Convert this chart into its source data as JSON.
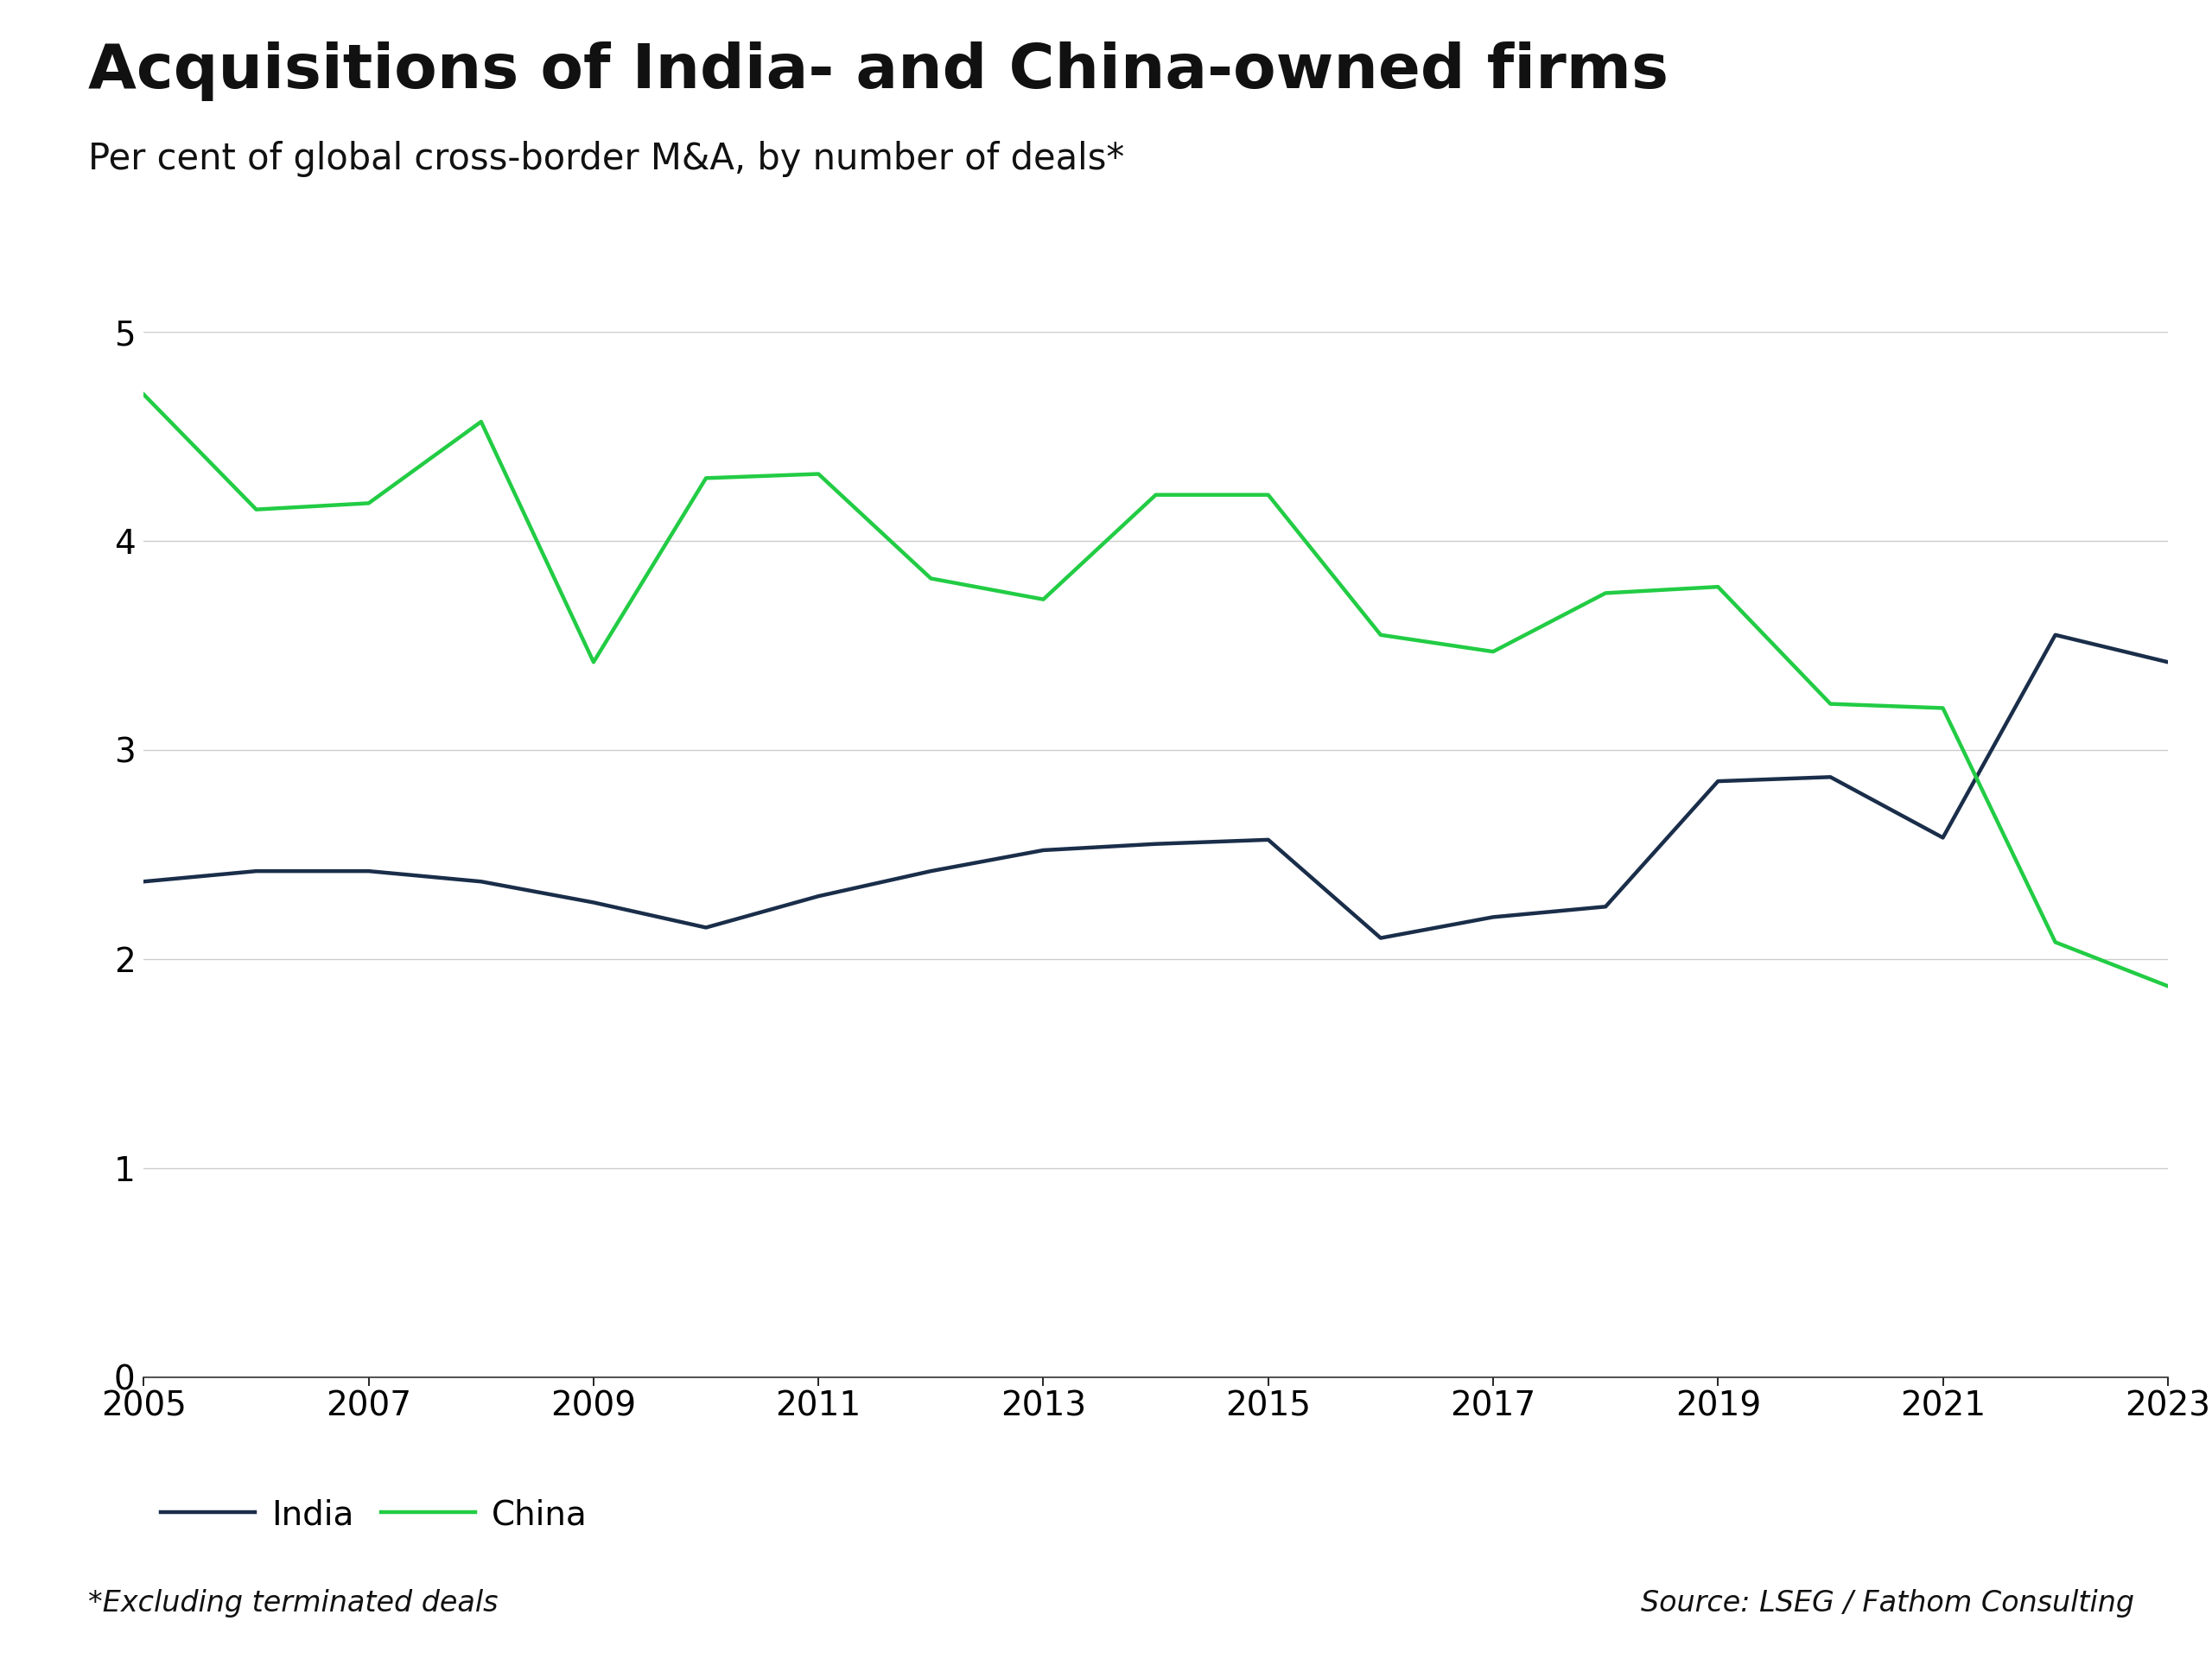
{
  "title": "Acquisitions of India- and China-owned firms",
  "subtitle": "Per cent of global cross-border M&A, by number of deals*",
  "footnote": "*Excluding terminated deals",
  "source": "Source: LSEG / Fathom Consulting",
  "years": [
    2005,
    2006,
    2007,
    2008,
    2009,
    2010,
    2011,
    2012,
    2013,
    2014,
    2015,
    2016,
    2017,
    2018,
    2019,
    2020,
    2021,
    2022,
    2023
  ],
  "india": [
    2.37,
    2.42,
    2.42,
    2.37,
    2.27,
    2.15,
    2.3,
    2.42,
    2.52,
    2.55,
    2.57,
    2.1,
    2.2,
    2.25,
    2.85,
    2.87,
    2.58,
    3.55,
    3.42
  ],
  "china": [
    4.7,
    4.15,
    4.18,
    4.57,
    3.42,
    4.3,
    4.32,
    3.82,
    3.72,
    4.22,
    4.22,
    3.55,
    3.47,
    3.75,
    3.78,
    3.22,
    3.2,
    2.08,
    1.87
  ],
  "india_color": "#1a2e4a",
  "china_color": "#22cc44",
  "ylim": [
    0,
    5
  ],
  "yticks": [
    0,
    1,
    2,
    3,
    4,
    5
  ],
  "xtick_years": [
    2005,
    2007,
    2009,
    2011,
    2013,
    2015,
    2017,
    2019,
    2021,
    2023
  ],
  "line_width": 3.2,
  "background_color": "#ffffff",
  "grid_color": "#cccccc",
  "title_fontsize": 52,
  "subtitle_fontsize": 30,
  "axis_fontsize": 28,
  "legend_fontsize": 28,
  "footnote_fontsize": 24
}
